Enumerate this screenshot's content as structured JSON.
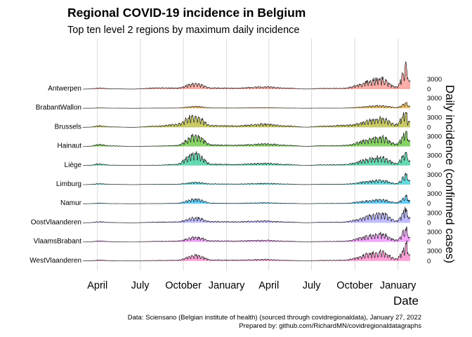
{
  "title": "Regional COVID-19 incidence in Belgium",
  "subtitle": "Top ten level 2 regions by maximum daily incidence",
  "caption": {
    "line1": "Data: Sciensano (Belgian institute of health) (sourced through covidregionaldata), January 27, 2022",
    "line2": "Prepared by: github.com/RichardMN/covidregionaldatagraphs"
  },
  "chart_data": {
    "type": "area",
    "title": "Regional COVID-19 incidence in Belgium",
    "subtitle": "Top ten level 2 regions by maximum daily incidence",
    "xlabel": "Date",
    "ylabel": "Daily incidence (confirmed cases)",
    "x_range": [
      "2020-03-01",
      "2022-01-27"
    ],
    "x_ticks": [
      {
        "date": "2020-04-01",
        "label": "April"
      },
      {
        "date": "2020-07-01",
        "label": "July"
      },
      {
        "date": "2020-10-01",
        "label": "October"
      },
      {
        "date": "2021-01-01",
        "label": "January"
      },
      {
        "date": "2021-04-01",
        "label": "April"
      },
      {
        "date": "2021-07-01",
        "label": "July"
      },
      {
        "date": "2021-10-01",
        "label": "October"
      },
      {
        "date": "2022-01-01",
        "label": "January"
      }
    ],
    "y_ticks": [
      0,
      3000
    ],
    "grid": true,
    "legend": "none",
    "series": [
      {
        "name": "Antwerpen",
        "color": "#F8766D",
        "peak_date": "2022-01-22",
        "values": [
          {
            "x": "2020-03-15",
            "y": 80
          },
          {
            "x": "2020-04-05",
            "y": 350
          },
          {
            "x": "2020-05-01",
            "y": 120
          },
          {
            "x": "2020-06-15",
            "y": 30
          },
          {
            "x": "2020-08-05",
            "y": 450
          },
          {
            "x": "2020-09-15",
            "y": 350
          },
          {
            "x": "2020-10-28",
            "y": 1700
          },
          {
            "x": "2020-12-01",
            "y": 400
          },
          {
            "x": "2021-01-15",
            "y": 350
          },
          {
            "x": "2021-03-25",
            "y": 700
          },
          {
            "x": "2021-05-10",
            "y": 350
          },
          {
            "x": "2021-06-20",
            "y": 60
          },
          {
            "x": "2021-07-20",
            "y": 250
          },
          {
            "x": "2021-09-01",
            "y": 280
          },
          {
            "x": "2021-11-28",
            "y": 3000
          },
          {
            "x": "2021-12-28",
            "y": 700
          },
          {
            "x": "2022-01-22",
            "y": 7000
          }
        ]
      },
      {
        "name": "BrabantWallon",
        "color": "#D89000",
        "peak_date": "2022-01-22",
        "values": [
          {
            "x": "2020-03-15",
            "y": 20
          },
          {
            "x": "2020-04-05",
            "y": 110
          },
          {
            "x": "2020-05-01",
            "y": 40
          },
          {
            "x": "2020-06-15",
            "y": 8
          },
          {
            "x": "2020-08-05",
            "y": 60
          },
          {
            "x": "2020-09-15",
            "y": 80
          },
          {
            "x": "2020-10-28",
            "y": 600
          },
          {
            "x": "2020-12-01",
            "y": 100
          },
          {
            "x": "2021-01-15",
            "y": 80
          },
          {
            "x": "2021-03-25",
            "y": 180
          },
          {
            "x": "2021-05-10",
            "y": 80
          },
          {
            "x": "2021-06-20",
            "y": 15
          },
          {
            "x": "2021-07-20",
            "y": 60
          },
          {
            "x": "2021-09-01",
            "y": 50
          },
          {
            "x": "2021-11-28",
            "y": 800
          },
          {
            "x": "2021-12-28",
            "y": 250
          },
          {
            "x": "2022-01-22",
            "y": 1700
          }
        ]
      },
      {
        "name": "Brussels",
        "color": "#A3A500",
        "peak_date": "2022-01-20",
        "values": [
          {
            "x": "2020-03-15",
            "y": 100
          },
          {
            "x": "2020-04-05",
            "y": 500
          },
          {
            "x": "2020-05-01",
            "y": 150
          },
          {
            "x": "2020-06-15",
            "y": 30
          },
          {
            "x": "2020-08-05",
            "y": 400
          },
          {
            "x": "2020-09-15",
            "y": 900
          },
          {
            "x": "2020-10-25",
            "y": 3500
          },
          {
            "x": "2020-12-01",
            "y": 600
          },
          {
            "x": "2021-01-15",
            "y": 450
          },
          {
            "x": "2021-03-25",
            "y": 1000
          },
          {
            "x": "2021-05-10",
            "y": 450
          },
          {
            "x": "2021-06-20",
            "y": 80
          },
          {
            "x": "2021-07-20",
            "y": 350
          },
          {
            "x": "2021-09-15",
            "y": 700
          },
          {
            "x": "2021-11-28",
            "y": 2800
          },
          {
            "x": "2021-12-28",
            "y": 900
          },
          {
            "x": "2022-01-20",
            "y": 5000
          }
        ]
      },
      {
        "name": "Hainaut",
        "color": "#39B600",
        "peak_date": "2022-01-22",
        "values": [
          {
            "x": "2020-03-15",
            "y": 100
          },
          {
            "x": "2020-04-05",
            "y": 600
          },
          {
            "x": "2020-05-01",
            "y": 200
          },
          {
            "x": "2020-06-15",
            "y": 30
          },
          {
            "x": "2020-08-05",
            "y": 150
          },
          {
            "x": "2020-09-15",
            "y": 300
          },
          {
            "x": "2020-10-28",
            "y": 3200
          },
          {
            "x": "2020-12-01",
            "y": 500
          },
          {
            "x": "2021-01-15",
            "y": 400
          },
          {
            "x": "2021-03-25",
            "y": 800
          },
          {
            "x": "2021-05-10",
            "y": 400
          },
          {
            "x": "2021-06-20",
            "y": 60
          },
          {
            "x": "2021-07-20",
            "y": 250
          },
          {
            "x": "2021-09-01",
            "y": 300
          },
          {
            "x": "2021-11-28",
            "y": 2700
          },
          {
            "x": "2021-12-28",
            "y": 800
          },
          {
            "x": "2022-01-22",
            "y": 4500
          }
        ]
      },
      {
        "name": "Liège",
        "color": "#00BF7D",
        "peak_date": "2022-01-22",
        "values": [
          {
            "x": "2020-03-15",
            "y": 100
          },
          {
            "x": "2020-04-05",
            "y": 500
          },
          {
            "x": "2020-05-01",
            "y": 150
          },
          {
            "x": "2020-06-15",
            "y": 25
          },
          {
            "x": "2020-08-05",
            "y": 120
          },
          {
            "x": "2020-09-15",
            "y": 400
          },
          {
            "x": "2020-10-25",
            "y": 3700
          },
          {
            "x": "2020-12-01",
            "y": 450
          },
          {
            "x": "2021-01-15",
            "y": 350
          },
          {
            "x": "2021-03-25",
            "y": 700
          },
          {
            "x": "2021-05-10",
            "y": 350
          },
          {
            "x": "2021-06-20",
            "y": 50
          },
          {
            "x": "2021-07-20",
            "y": 250
          },
          {
            "x": "2021-09-01",
            "y": 300
          },
          {
            "x": "2021-11-28",
            "y": 2500
          },
          {
            "x": "2021-12-28",
            "y": 700
          },
          {
            "x": "2022-01-22",
            "y": 4200
          }
        ]
      },
      {
        "name": "Limburg",
        "color": "#00BFC4",
        "peak_date": "2022-01-22",
        "values": [
          {
            "x": "2020-03-15",
            "y": 60
          },
          {
            "x": "2020-04-05",
            "y": 300
          },
          {
            "x": "2020-05-01",
            "y": 100
          },
          {
            "x": "2020-06-15",
            "y": 20
          },
          {
            "x": "2020-08-05",
            "y": 120
          },
          {
            "x": "2020-09-15",
            "y": 150
          },
          {
            "x": "2020-10-28",
            "y": 700
          },
          {
            "x": "2020-12-01",
            "y": 250
          },
          {
            "x": "2021-01-15",
            "y": 200
          },
          {
            "x": "2021-03-25",
            "y": 400
          },
          {
            "x": "2021-05-10",
            "y": 200
          },
          {
            "x": "2021-06-20",
            "y": 30
          },
          {
            "x": "2021-07-20",
            "y": 150
          },
          {
            "x": "2021-09-01",
            "y": 150
          },
          {
            "x": "2021-11-28",
            "y": 1300
          },
          {
            "x": "2021-12-28",
            "y": 350
          },
          {
            "x": "2022-01-22",
            "y": 3200
          }
        ]
      },
      {
        "name": "Namur",
        "color": "#00B0F6",
        "peak_date": "2022-01-22",
        "values": [
          {
            "x": "2020-03-15",
            "y": 40
          },
          {
            "x": "2020-04-05",
            "y": 200
          },
          {
            "x": "2020-05-01",
            "y": 60
          },
          {
            "x": "2020-06-15",
            "y": 10
          },
          {
            "x": "2020-08-05",
            "y": 60
          },
          {
            "x": "2020-09-15",
            "y": 150
          },
          {
            "x": "2020-10-28",
            "y": 1400
          },
          {
            "x": "2020-12-01",
            "y": 200
          },
          {
            "x": "2021-01-15",
            "y": 150
          },
          {
            "x": "2021-03-25",
            "y": 300
          },
          {
            "x": "2021-05-10",
            "y": 150
          },
          {
            "x": "2021-06-20",
            "y": 20
          },
          {
            "x": "2021-07-20",
            "y": 100
          },
          {
            "x": "2021-09-01",
            "y": 120
          },
          {
            "x": "2021-11-28",
            "y": 1200
          },
          {
            "x": "2021-12-28",
            "y": 350
          },
          {
            "x": "2022-01-22",
            "y": 2500
          }
        ]
      },
      {
        "name": "OostVlaanderen",
        "color": "#9590FF",
        "peak_date": "2022-01-22",
        "values": [
          {
            "x": "2020-03-15",
            "y": 80
          },
          {
            "x": "2020-04-05",
            "y": 350
          },
          {
            "x": "2020-05-01",
            "y": 120
          },
          {
            "x": "2020-06-15",
            "y": 25
          },
          {
            "x": "2020-08-05",
            "y": 250
          },
          {
            "x": "2020-09-15",
            "y": 300
          },
          {
            "x": "2020-10-28",
            "y": 1500
          },
          {
            "x": "2020-12-01",
            "y": 400
          },
          {
            "x": "2021-01-15",
            "y": 350
          },
          {
            "x": "2021-03-25",
            "y": 600
          },
          {
            "x": "2021-05-10",
            "y": 300
          },
          {
            "x": "2021-06-20",
            "y": 50
          },
          {
            "x": "2021-07-20",
            "y": 200
          },
          {
            "x": "2021-09-01",
            "y": 250
          },
          {
            "x": "2021-11-28",
            "y": 2700
          },
          {
            "x": "2021-12-28",
            "y": 700
          },
          {
            "x": "2022-01-22",
            "y": 4500
          }
        ]
      },
      {
        "name": "VlaamsBrabant",
        "color": "#E76BF3",
        "peak_date": "2022-01-22",
        "values": [
          {
            "x": "2020-03-15",
            "y": 70
          },
          {
            "x": "2020-04-05",
            "y": 300
          },
          {
            "x": "2020-05-01",
            "y": 100
          },
          {
            "x": "2020-06-15",
            "y": 20
          },
          {
            "x": "2020-08-05",
            "y": 200
          },
          {
            "x": "2020-09-15",
            "y": 300
          },
          {
            "x": "2020-10-28",
            "y": 1400
          },
          {
            "x": "2020-12-01",
            "y": 350
          },
          {
            "x": "2021-01-15",
            "y": 300
          },
          {
            "x": "2021-03-25",
            "y": 500
          },
          {
            "x": "2021-05-10",
            "y": 250
          },
          {
            "x": "2021-06-20",
            "y": 40
          },
          {
            "x": "2021-07-20",
            "y": 150
          },
          {
            "x": "2021-09-01",
            "y": 200
          },
          {
            "x": "2021-11-28",
            "y": 2400
          },
          {
            "x": "2021-12-28",
            "y": 600
          },
          {
            "x": "2022-01-22",
            "y": 4200
          }
        ]
      },
      {
        "name": "WestVlaanderen",
        "color": "#FF62BC",
        "peak_date": "2022-01-22",
        "values": [
          {
            "x": "2020-03-15",
            "y": 80
          },
          {
            "x": "2020-04-05",
            "y": 300
          },
          {
            "x": "2020-05-01",
            "y": 100
          },
          {
            "x": "2020-06-15",
            "y": 20
          },
          {
            "x": "2020-08-05",
            "y": 200
          },
          {
            "x": "2020-09-15",
            "y": 250
          },
          {
            "x": "2020-10-28",
            "y": 1700
          },
          {
            "x": "2020-12-01",
            "y": 350
          },
          {
            "x": "2021-01-15",
            "y": 300
          },
          {
            "x": "2021-03-25",
            "y": 500
          },
          {
            "x": "2021-05-10",
            "y": 250
          },
          {
            "x": "2021-06-20",
            "y": 40
          },
          {
            "x": "2021-07-20",
            "y": 200
          },
          {
            "x": "2021-09-01",
            "y": 250
          },
          {
            "x": "2021-11-28",
            "y": 2800
          },
          {
            "x": "2021-12-28",
            "y": 700
          },
          {
            "x": "2022-01-22",
            "y": 5000
          }
        ]
      }
    ]
  }
}
